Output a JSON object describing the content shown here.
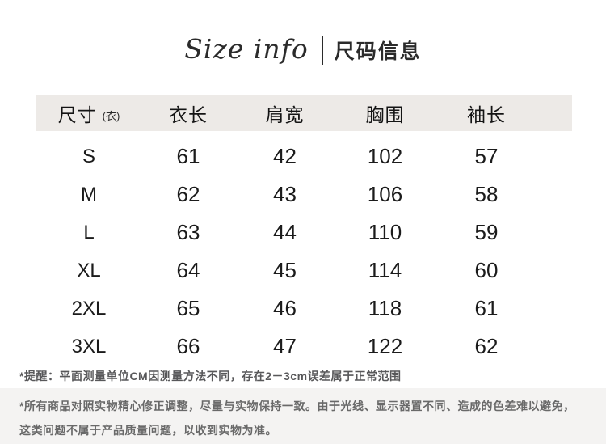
{
  "header": {
    "title_en": "Size info",
    "title_zh": "尺码信息"
  },
  "table": {
    "columns": [
      "尺寸",
      "衣长",
      "肩宽",
      "胸围",
      "袖长"
    ],
    "size_column_note": "(衣)",
    "rows": [
      {
        "size": "S",
        "values": [
          "61",
          "42",
          "102",
          "57"
        ]
      },
      {
        "size": "M",
        "values": [
          "62",
          "43",
          "106",
          "58"
        ]
      },
      {
        "size": "L",
        "values": [
          "63",
          "44",
          "110",
          "59"
        ]
      },
      {
        "size": "XL",
        "values": [
          "64",
          "45",
          "114",
          "60"
        ]
      },
      {
        "size": "2XL",
        "values": [
          "65",
          "46",
          "118",
          "61"
        ]
      },
      {
        "size": "3XL",
        "values": [
          "66",
          "47",
          "122",
          "62"
        ]
      }
    ]
  },
  "notes": {
    "measure_note": "*提醒：平面测量单位CM因测量方法不同，存在2－3cm误差属于正常范围",
    "color_note_line1": "*所有商品对照实物精心修正调整，尽量与实物保持一致。由于光线、显示器置不同、造成的色差难以避免，",
    "color_note_line2": "这类问题不属于产品质量问题，以收到实物为准。"
  },
  "colors": {
    "header_band_bg": "#edeae7",
    "footer_band_bg": "#f4f3f2",
    "title_text": "#2b2b2b",
    "table_text": "#1b1b1b",
    "note_text": "#58585a",
    "footer_text": "#696969"
  }
}
